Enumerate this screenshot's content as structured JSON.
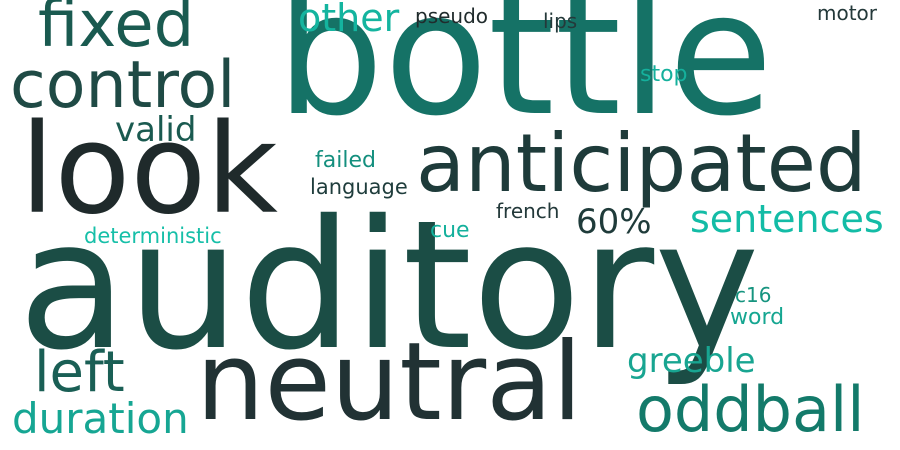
{
  "words": {
    "auditory": {
      "text": "auditory",
      "color": "#1b4d45"
    },
    "bottle": {
      "text": "bottle",
      "color": "#157266"
    },
    "look": {
      "text": "look",
      "color": "#1f2a2b"
    },
    "neutral": {
      "text": "neutral",
      "color": "#213234"
    },
    "anticipated": {
      "text": "anticipated",
      "color": "#1e3b3a"
    },
    "control": {
      "text": "control",
      "color": "#1f4a45"
    },
    "fixed": {
      "text": "fixed",
      "color": "#1a5a50"
    },
    "oddball": {
      "text": "oddball",
      "color": "#137a6a"
    },
    "left": {
      "text": "left",
      "color": "#1a5f55"
    },
    "duration": {
      "text": "duration",
      "color": "#16a693"
    },
    "sentences": {
      "text": "sentences",
      "color": "#13bca6"
    },
    "other": {
      "text": "other",
      "color": "#14b49f"
    },
    "valid": {
      "text": "valid",
      "color": "#1a5a50"
    },
    "greeble": {
      "text": "greeble",
      "color": "#18a591"
    },
    "sixty_percent": {
      "text": "60%",
      "color": "#1f3b3a"
    },
    "deterministic": {
      "text": "deterministic",
      "color": "#16bfa8"
    },
    "failed": {
      "text": "failed",
      "color": "#148f7e"
    },
    "language": {
      "text": "language",
      "color": "#1f3d3c"
    },
    "french": {
      "text": "french",
      "color": "#23393a"
    },
    "cue": {
      "text": "cue",
      "color": "#14b09c"
    },
    "stop": {
      "text": "stop",
      "color": "#15b09c"
    },
    "pseudo": {
      "text": "pseudo",
      "color": "#202b2c"
    },
    "lips": {
      "text": "lips",
      "color": "#24393a"
    },
    "motor": {
      "text": "motor",
      "color": "#24393a"
    },
    "c16": {
      "text": "c16",
      "color": "#16947f"
    },
    "word": {
      "text": "word",
      "color": "#15a691"
    }
  }
}
